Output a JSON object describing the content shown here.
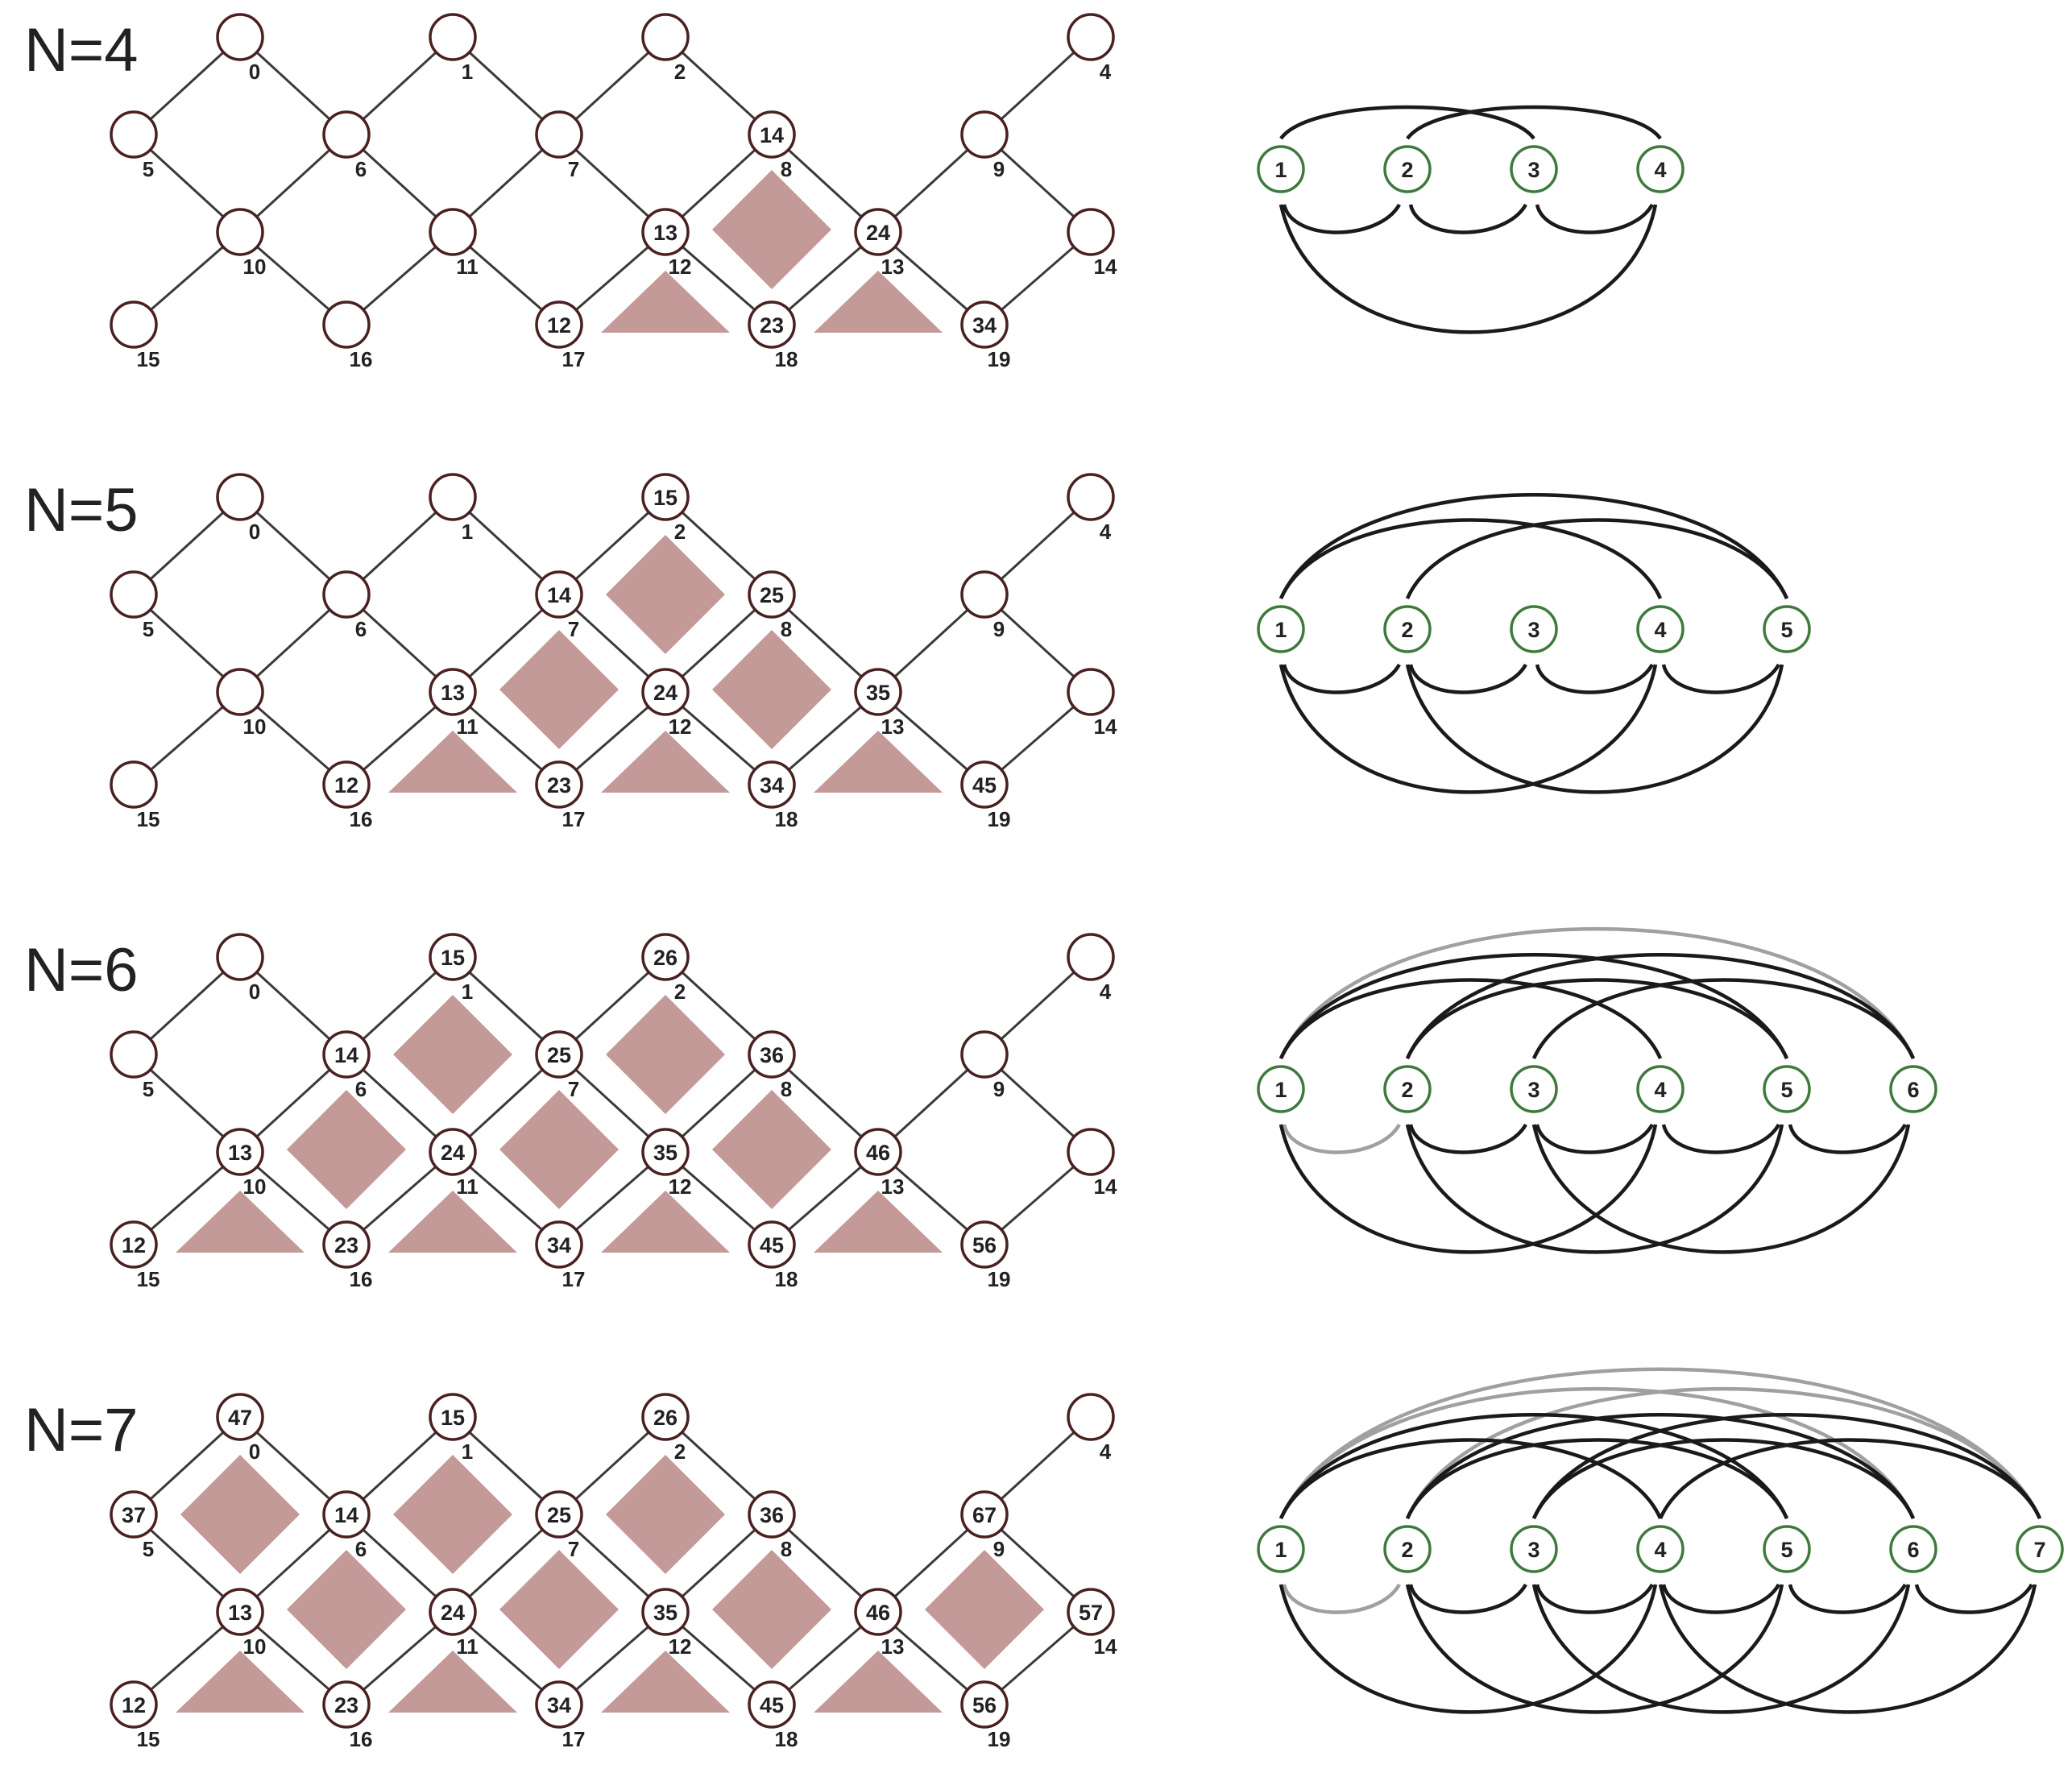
{
  "colors": {
    "node_stroke": "#4a2020",
    "edge": "#3a3a3a",
    "patch_fill": "#c49a98",
    "arc_node_stroke": "#3f7a3d",
    "arc_dark": "#1a1a1a",
    "arc_light": "#a0a0a0"
  },
  "panels": [
    {
      "title": "N=4",
      "indices": [
        "0",
        "1",
        "2",
        "4",
        "5",
        "6",
        "7",
        "8",
        "9",
        "10",
        "11",
        "12",
        "13",
        "14",
        "15",
        "16",
        "17",
        "18",
        "19"
      ],
      "node_labels": {
        "8": "14",
        "12": "13",
        "13": "24",
        "17": "12",
        "18": "23",
        "19": "34"
      },
      "diamonds": [
        "8-12-13-18"
      ],
      "triangles": [
        "12-17-18",
        "13-18-19"
      ],
      "arc_nodes": [
        "1",
        "2",
        "3",
        "4"
      ],
      "arcs": [
        {
          "from": 1,
          "to": 3,
          "side": "top",
          "shade": "dark"
        },
        {
          "from": 2,
          "to": 4,
          "side": "top",
          "shade": "dark"
        },
        {
          "from": 1,
          "to": 2,
          "side": "bottom",
          "shade": "dark"
        },
        {
          "from": 2,
          "to": 3,
          "side": "bottom",
          "shade": "dark"
        },
        {
          "from": 3,
          "to": 4,
          "side": "bottom",
          "shade": "dark"
        },
        {
          "from": 1,
          "to": 4,
          "side": "bottom",
          "shade": "dark"
        }
      ]
    },
    {
      "title": "N=5",
      "indices": [
        "0",
        "1",
        "2",
        "4",
        "5",
        "6",
        "7",
        "8",
        "9",
        "10",
        "11",
        "12",
        "13",
        "14",
        "15",
        "16",
        "17",
        "18",
        "19"
      ],
      "node_labels": {
        "2": "15",
        "7": "14",
        "8": "25",
        "11": "13",
        "12": "24",
        "13": "35",
        "16": "12",
        "17": "23",
        "18": "34",
        "19": "45"
      },
      "diamonds": [
        "2-7-8-12",
        "7-11-12-17",
        "8-12-13-18"
      ],
      "triangles": [
        "11-16-17",
        "12-17-18",
        "13-18-19"
      ],
      "arc_nodes": [
        "1",
        "2",
        "3",
        "4",
        "5"
      ],
      "arcs": [
        {
          "from": 1,
          "to": 5,
          "side": "top",
          "shade": "dark"
        },
        {
          "from": 1,
          "to": 4,
          "side": "top",
          "shade": "dark"
        },
        {
          "from": 2,
          "to": 5,
          "side": "top",
          "shade": "dark"
        },
        {
          "from": 1,
          "to": 2,
          "side": "bottom",
          "shade": "dark"
        },
        {
          "from": 2,
          "to": 3,
          "side": "bottom",
          "shade": "dark"
        },
        {
          "from": 3,
          "to": 4,
          "side": "bottom",
          "shade": "dark"
        },
        {
          "from": 4,
          "to": 5,
          "side": "bottom",
          "shade": "dark"
        },
        {
          "from": 1,
          "to": 4,
          "side": "bottom",
          "shade": "dark"
        },
        {
          "from": 2,
          "to": 5,
          "side": "bottom",
          "shade": "dark"
        }
      ]
    },
    {
      "title": "N=6",
      "indices": [
        "0",
        "1",
        "2",
        "4",
        "5",
        "6",
        "7",
        "8",
        "9",
        "10",
        "11",
        "12",
        "13",
        "14",
        "15",
        "16",
        "17",
        "18",
        "19"
      ],
      "node_labels": {
        "1": "15",
        "2": "26",
        "6": "14",
        "7": "25",
        "8": "36",
        "10": "13",
        "11": "24",
        "12": "35",
        "13": "46",
        "15": "12",
        "16": "23",
        "17": "34",
        "18": "45",
        "19": "56"
      },
      "diamonds": [
        "1-6-7-11",
        "2-7-8-12",
        "6-10-11-16",
        "7-11-12-17",
        "8-12-13-18"
      ],
      "triangles": [
        "10-15-16",
        "11-16-17",
        "12-17-18",
        "13-18-19"
      ],
      "arc_nodes": [
        "1",
        "2",
        "3",
        "4",
        "5",
        "6"
      ],
      "arcs": [
        {
          "from": 1,
          "to": 6,
          "side": "top",
          "shade": "light"
        },
        {
          "from": 1,
          "to": 5,
          "side": "top",
          "shade": "dark"
        },
        {
          "from": 2,
          "to": 6,
          "side": "top",
          "shade": "dark"
        },
        {
          "from": 1,
          "to": 4,
          "side": "top",
          "shade": "dark"
        },
        {
          "from": 2,
          "to": 5,
          "side": "top",
          "shade": "dark"
        },
        {
          "from": 3,
          "to": 6,
          "side": "top",
          "shade": "dark"
        },
        {
          "from": 1,
          "to": 2,
          "side": "bottom",
          "shade": "light"
        },
        {
          "from": 2,
          "to": 3,
          "side": "bottom",
          "shade": "dark"
        },
        {
          "from": 3,
          "to": 4,
          "side": "bottom",
          "shade": "dark"
        },
        {
          "from": 4,
          "to": 5,
          "side": "bottom",
          "shade": "dark"
        },
        {
          "from": 5,
          "to": 6,
          "side": "bottom",
          "shade": "dark"
        },
        {
          "from": 1,
          "to": 4,
          "side": "bottom",
          "shade": "dark"
        },
        {
          "from": 2,
          "to": 5,
          "side": "bottom",
          "shade": "dark"
        },
        {
          "from": 3,
          "to": 6,
          "side": "bottom",
          "shade": "dark"
        }
      ]
    },
    {
      "title": "N=7",
      "indices": [
        "0",
        "1",
        "2",
        "4",
        "5",
        "6",
        "7",
        "8",
        "9",
        "10",
        "11",
        "12",
        "13",
        "14",
        "15",
        "16",
        "17",
        "18",
        "19"
      ],
      "node_labels": {
        "0": "47",
        "1": "15",
        "2": "26",
        "5": "37",
        "6": "14",
        "7": "25",
        "8": "36",
        "9": "67",
        "10": "13",
        "11": "24",
        "12": "35",
        "13": "46",
        "14": "57",
        "15": "12",
        "16": "23",
        "17": "34",
        "18": "45",
        "19": "56"
      },
      "diamonds": [
        "0-5-6-10",
        "1-6-7-11",
        "2-7-8-12",
        "6-10-11-16",
        "7-11-12-17",
        "8-12-13-18",
        "9-13-14-19"
      ],
      "triangles": [
        "10-15-16",
        "11-16-17",
        "12-17-18",
        "13-18-19"
      ],
      "arc_nodes": [
        "1",
        "2",
        "3",
        "4",
        "5",
        "6",
        "7"
      ],
      "arcs": [
        {
          "from": 1,
          "to": 7,
          "side": "top",
          "shade": "light"
        },
        {
          "from": 1,
          "to": 6,
          "side": "top",
          "shade": "light"
        },
        {
          "from": 2,
          "to": 7,
          "side": "top",
          "shade": "light"
        },
        {
          "from": 1,
          "to": 5,
          "side": "top",
          "shade": "dark"
        },
        {
          "from": 2,
          "to": 6,
          "side": "top",
          "shade": "dark"
        },
        {
          "from": 3,
          "to": 7,
          "side": "top",
          "shade": "dark"
        },
        {
          "from": 1,
          "to": 4,
          "side": "top",
          "shade": "dark"
        },
        {
          "from": 2,
          "to": 5,
          "side": "top",
          "shade": "dark"
        },
        {
          "from": 3,
          "to": 6,
          "side": "top",
          "shade": "dark"
        },
        {
          "from": 4,
          "to": 7,
          "side": "top",
          "shade": "dark"
        },
        {
          "from": 1,
          "to": 2,
          "side": "bottom",
          "shade": "light"
        },
        {
          "from": 2,
          "to": 3,
          "side": "bottom",
          "shade": "dark"
        },
        {
          "from": 3,
          "to": 4,
          "side": "bottom",
          "shade": "dark"
        },
        {
          "from": 4,
          "to": 5,
          "side": "bottom",
          "shade": "dark"
        },
        {
          "from": 5,
          "to": 6,
          "side": "bottom",
          "shade": "dark"
        },
        {
          "from": 6,
          "to": 7,
          "side": "bottom",
          "shade": "dark"
        },
        {
          "from": 1,
          "to": 4,
          "side": "bottom",
          "shade": "dark"
        },
        {
          "from": 2,
          "to": 5,
          "side": "bottom",
          "shade": "dark"
        },
        {
          "from": 3,
          "to": 6,
          "side": "bottom",
          "shade": "dark"
        },
        {
          "from": 4,
          "to": 7,
          "side": "bottom",
          "shade": "dark"
        }
      ]
    }
  ]
}
